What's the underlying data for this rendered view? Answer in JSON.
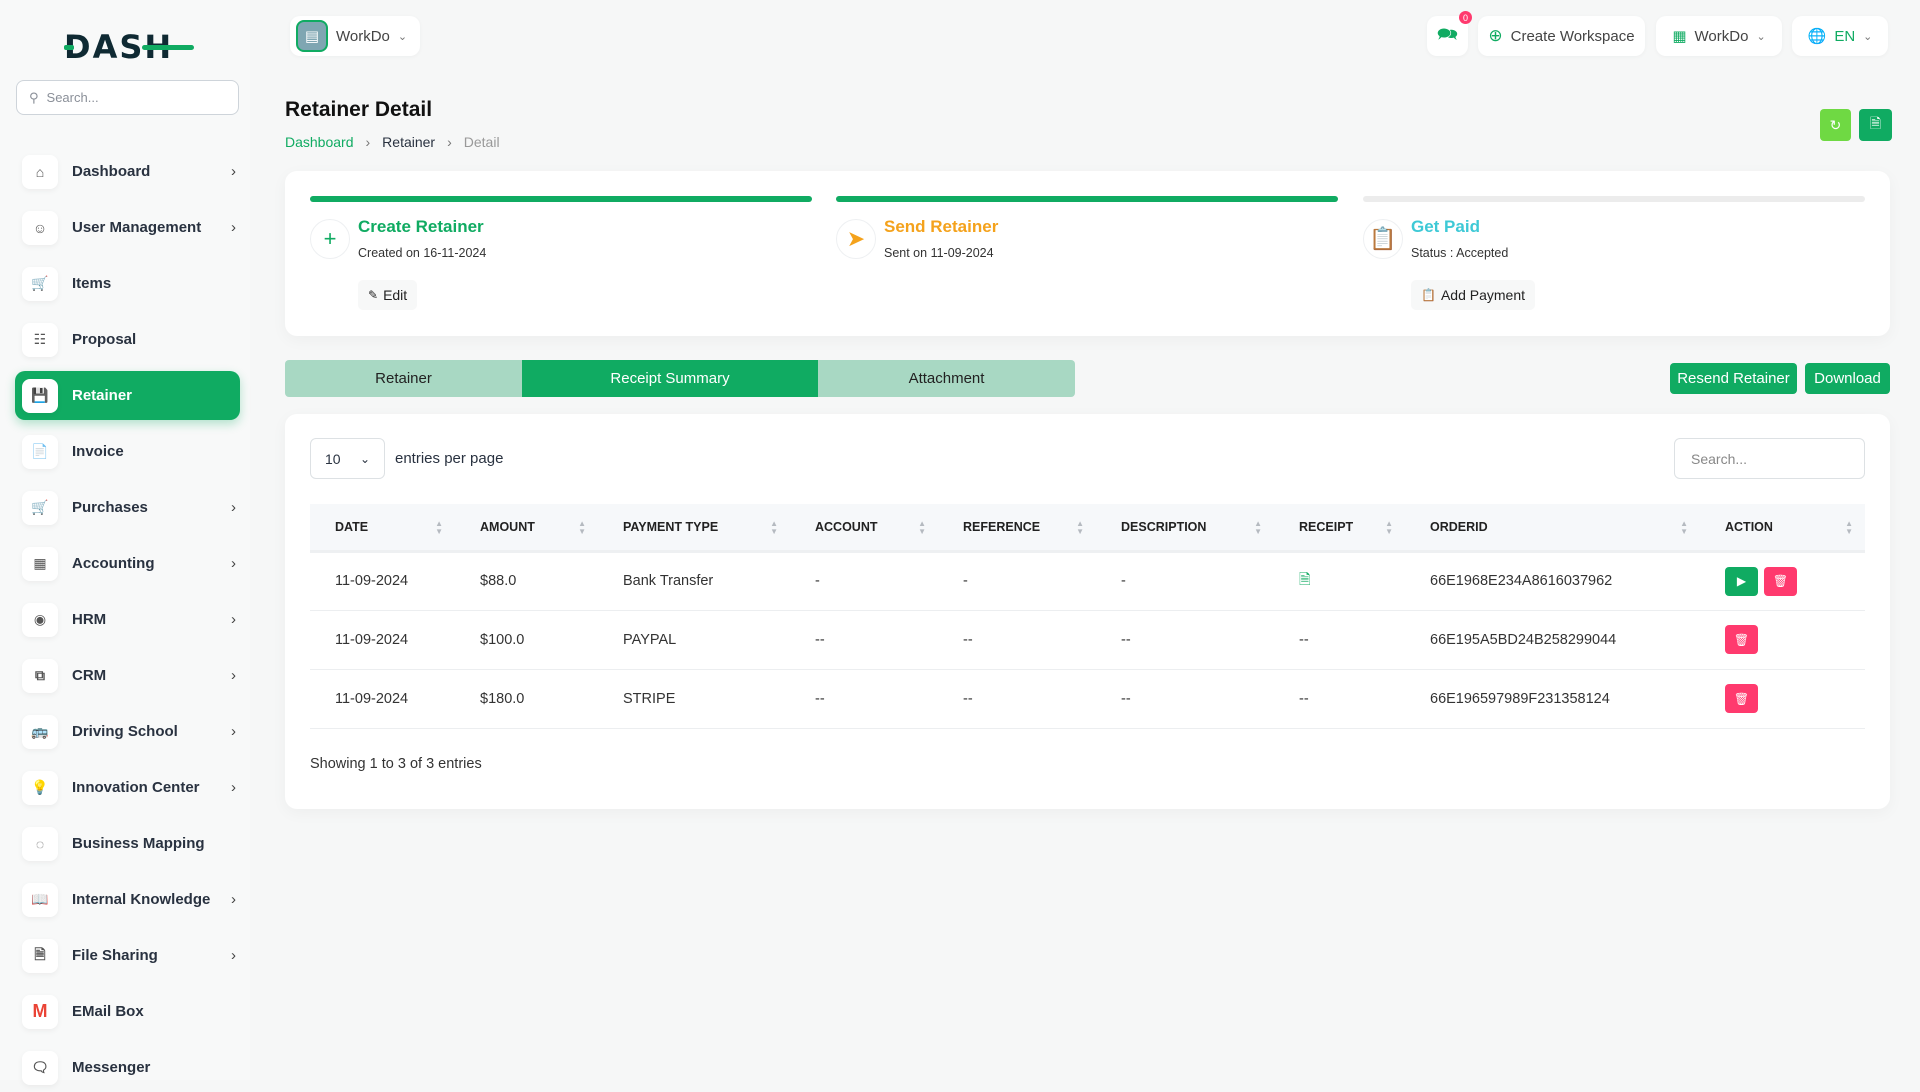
{
  "sidebar": {
    "logo": "DASH",
    "search_placeholder": "Search...",
    "items": [
      {
        "label": "Dashboard",
        "icon": "home-icon",
        "chevron": true
      },
      {
        "label": "User Management",
        "icon": "users-icon",
        "chevron": true
      },
      {
        "label": "Items",
        "icon": "cart-icon",
        "chevron": false
      },
      {
        "label": "Proposal",
        "icon": "proposal-icon",
        "chevron": false
      },
      {
        "label": "Retainer",
        "icon": "retainer-icon",
        "chevron": false,
        "active": true
      },
      {
        "label": "Invoice",
        "icon": "invoice-icon",
        "chevron": false
      },
      {
        "label": "Purchases",
        "icon": "cart-icon",
        "chevron": true
      },
      {
        "label": "Accounting",
        "icon": "apps-icon",
        "chevron": true
      },
      {
        "label": "HRM",
        "icon": "hrm-icon",
        "chevron": true
      },
      {
        "label": "CRM",
        "icon": "crm-icon",
        "chevron": true
      },
      {
        "label": "Driving School",
        "icon": "bus-icon",
        "chevron": true
      },
      {
        "label": "Innovation Center",
        "icon": "bulb-icon",
        "chevron": true
      },
      {
        "label": "Business Mapping",
        "icon": "circle-dashed-icon",
        "chevron": false
      },
      {
        "label": "Internal Knowledge",
        "icon": "book-icon",
        "chevron": true
      },
      {
        "label": "File Sharing",
        "icon": "file-icon",
        "chevron": true
      },
      {
        "label": "EMail Box",
        "icon": "gmail-icon",
        "chevron": false
      },
      {
        "label": "Messenger",
        "icon": "chat-icon",
        "chevron": false
      }
    ]
  },
  "header": {
    "workspace": "WorkDo",
    "notif_count": "0",
    "create_workspace": "Create Workspace",
    "workdo": "WorkDo",
    "lang": "EN"
  },
  "page": {
    "title": "Retainer Detail",
    "breadcrumb": [
      "Dashboard",
      "Retainer",
      "Detail"
    ]
  },
  "steps": [
    {
      "title": "Create Retainer",
      "sub": "Created on 16-11-2024",
      "button": "Edit",
      "color": "#10ab62",
      "progress": 100
    },
    {
      "title": "Send Retainer",
      "sub": "Sent on 11-09-2024",
      "color": "#f4a21c",
      "progress": 100
    },
    {
      "title": "Get Paid",
      "sub": "Status : Accepted",
      "button": "Add Payment",
      "color": "#3ec9d6",
      "progress": 0
    }
  ],
  "tabs": [
    "Retainer",
    "Receipt Summary",
    "Attachment"
  ],
  "actions": {
    "resend": "Resend Retainer",
    "download": "Download"
  },
  "table": {
    "entries_value": "10",
    "entries_label": "entries per page",
    "search_placeholder": "Search...",
    "columns": [
      "DATE",
      "AMOUNT",
      "PAYMENT TYPE",
      "ACCOUNT",
      "REFERENCE",
      "DESCRIPTION",
      "RECEIPT",
      "ORDERID",
      "ACTION"
    ],
    "rows": [
      [
        "11-09-2024",
        "$88.0",
        "Bank Transfer",
        "-",
        "-",
        "-",
        "",
        "66E1968E234A8616037962"
      ],
      [
        "11-09-2024",
        "$100.0",
        "PAYPAL",
        "--",
        "--",
        "--",
        "--",
        "66E195A5BD24B258299044"
      ],
      [
        "11-09-2024",
        "$180.0",
        "STRIPE",
        "--",
        "--",
        "--",
        "--",
        "66E196597989F231358124"
      ]
    ],
    "footer": "Showing 1 to 3 of 3 entries"
  },
  "colors": {
    "primary": "#10ab62",
    "danger": "#ff3a6e",
    "accent_light": "#6fd943"
  }
}
